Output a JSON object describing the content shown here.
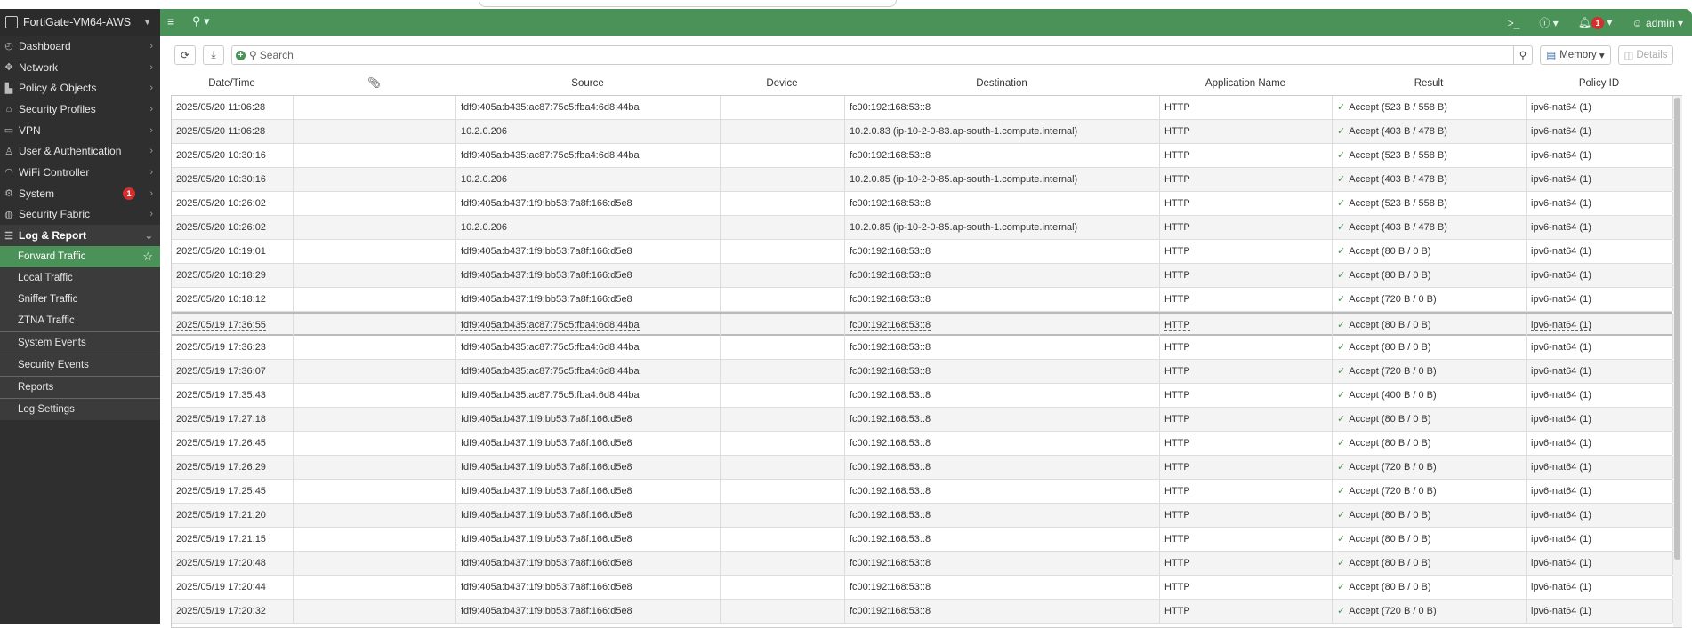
{
  "device_name": "FortiGate-VM64-AWS",
  "sidebar": {
    "items": [
      {
        "label": "Dashboard",
        "icon": "dashboard-icon"
      },
      {
        "label": "Network",
        "icon": "network-icon"
      },
      {
        "label": "Policy & Objects",
        "icon": "policy-icon"
      },
      {
        "label": "Security Profiles",
        "icon": "lock-icon"
      },
      {
        "label": "VPN",
        "icon": "vpn-icon"
      },
      {
        "label": "User & Authentication",
        "icon": "user-icon"
      },
      {
        "label": "WiFi Controller",
        "icon": "wifi-icon"
      },
      {
        "label": "System",
        "icon": "gear-icon",
        "badge": "1"
      },
      {
        "label": "Security Fabric",
        "icon": "fabric-icon"
      }
    ],
    "log_report": {
      "label": "Log & Report",
      "sub": [
        "Forward Traffic",
        "Local Traffic",
        "Sniffer Traffic",
        "ZTNA Traffic"
      ],
      "sections": [
        "System Events",
        "Security Events",
        "Reports",
        "Log Settings"
      ]
    }
  },
  "topbar": {
    "notification_count": "1",
    "user": "admin"
  },
  "toolbar": {
    "search_placeholder": "Search",
    "memory_label": "Memory",
    "details_label": "Details"
  },
  "columns": [
    "Date/Time",
    "",
    "Source",
    "Device",
    "Destination",
    "Application Name",
    "Result",
    "Policy ID"
  ],
  "rows": [
    [
      "2025/05/20 11:06:28",
      "fdf9:405a:b435:ac87:75c5:fba4:6d8:44ba",
      "fc00:192:168:53::8",
      "HTTP",
      "Accept (523 B / 558 B)",
      "ipv6-nat64 (1)"
    ],
    [
      "2025/05/20 11:06:28",
      "10.2.0.206",
      "10.2.0.83 (ip-10-2-0-83.ap-south-1.compute.internal)",
      "HTTP",
      "Accept (403 B / 478 B)",
      "ipv6-nat64 (1)"
    ],
    [
      "2025/05/20 10:30:16",
      "fdf9:405a:b435:ac87:75c5:fba4:6d8:44ba",
      "fc00:192:168:53::8",
      "HTTP",
      "Accept (523 B / 558 B)",
      "ipv6-nat64 (1)"
    ],
    [
      "2025/05/20 10:30:16",
      "10.2.0.206",
      "10.2.0.85 (ip-10-2-0-85.ap-south-1.compute.internal)",
      "HTTP",
      "Accept (403 B / 478 B)",
      "ipv6-nat64 (1)"
    ],
    [
      "2025/05/20 10:26:02",
      "fdf9:405a:b437:1f9:bb53:7a8f:166:d5e8",
      "fc00:192:168:53::8",
      "HTTP",
      "Accept (523 B / 558 B)",
      "ipv6-nat64 (1)"
    ],
    [
      "2025/05/20 10:26:02",
      "10.2.0.206",
      "10.2.0.85 (ip-10-2-0-85.ap-south-1.compute.internal)",
      "HTTP",
      "Accept (403 B / 478 B)",
      "ipv6-nat64 (1)"
    ],
    [
      "2025/05/20 10:19:01",
      "fdf9:405a:b437:1f9:bb53:7a8f:166:d5e8",
      "fc00:192:168:53::8",
      "HTTP",
      "Accept (80 B / 0 B)",
      "ipv6-nat64 (1)"
    ],
    [
      "2025/05/20 10:18:29",
      "fdf9:405a:b437:1f9:bb53:7a8f:166:d5e8",
      "fc00:192:168:53::8",
      "HTTP",
      "Accept (80 B / 0 B)",
      "ipv6-nat64 (1)"
    ],
    [
      "2025/05/20 10:18:12",
      "fdf9:405a:b437:1f9:bb53:7a8f:166:d5e8",
      "fc00:192:168:53::8",
      "HTTP",
      "Accept (720 B / 0 B)",
      "ipv6-nat64 (1)"
    ],
    [
      "2025/05/19 17:36:55",
      "fdf9:405a:b435:ac87:75c5:fba4:6d8:44ba",
      "fc00:192:168:53::8",
      "HTTP",
      "Accept (80 B / 0 B)",
      "ipv6-nat64 (1)"
    ],
    [
      "2025/05/19 17:36:23",
      "fdf9:405a:b435:ac87:75c5:fba4:6d8:44ba",
      "fc00:192:168:53::8",
      "HTTP",
      "Accept (80 B / 0 B)",
      "ipv6-nat64 (1)"
    ],
    [
      "2025/05/19 17:36:07",
      "fdf9:405a:b435:ac87:75c5:fba4:6d8:44ba",
      "fc00:192:168:53::8",
      "HTTP",
      "Accept (720 B / 0 B)",
      "ipv6-nat64 (1)"
    ],
    [
      "2025/05/19 17:35:43",
      "fdf9:405a:b435:ac87:75c5:fba4:6d8:44ba",
      "fc00:192:168:53::8",
      "HTTP",
      "Accept (400 B / 0 B)",
      "ipv6-nat64 (1)"
    ],
    [
      "2025/05/19 17:27:18",
      "fdf9:405a:b437:1f9:bb53:7a8f:166:d5e8",
      "fc00:192:168:53::8",
      "HTTP",
      "Accept (80 B / 0 B)",
      "ipv6-nat64 (1)"
    ],
    [
      "2025/05/19 17:26:45",
      "fdf9:405a:b437:1f9:bb53:7a8f:166:d5e8",
      "fc00:192:168:53::8",
      "HTTP",
      "Accept (80 B / 0 B)",
      "ipv6-nat64 (1)"
    ],
    [
      "2025/05/19 17:26:29",
      "fdf9:405a:b437:1f9:bb53:7a8f:166:d5e8",
      "fc00:192:168:53::8",
      "HTTP",
      "Accept (720 B / 0 B)",
      "ipv6-nat64 (1)"
    ],
    [
      "2025/05/19 17:25:45",
      "fdf9:405a:b437:1f9:bb53:7a8f:166:d5e8",
      "fc00:192:168:53::8",
      "HTTP",
      "Accept (720 B / 0 B)",
      "ipv6-nat64 (1)"
    ],
    [
      "2025/05/19 17:21:20",
      "fdf9:405a:b437:1f9:bb53:7a8f:166:d5e8",
      "fc00:192:168:53::8",
      "HTTP",
      "Accept (80 B / 0 B)",
      "ipv6-nat64 (1)"
    ],
    [
      "2025/05/19 17:21:15",
      "fdf9:405a:b437:1f9:bb53:7a8f:166:d5e8",
      "fc00:192:168:53::8",
      "HTTP",
      "Accept (80 B / 0 B)",
      "ipv6-nat64 (1)"
    ],
    [
      "2025/05/19 17:20:48",
      "fdf9:405a:b437:1f9:bb53:7a8f:166:d5e8",
      "fc00:192:168:53::8",
      "HTTP",
      "Accept (80 B / 0 B)",
      "ipv6-nat64 (1)"
    ],
    [
      "2025/05/19 17:20:44",
      "fdf9:405a:b437:1f9:bb53:7a8f:166:d5e8",
      "fc00:192:168:53::8",
      "HTTP",
      "Accept (80 B / 0 B)",
      "ipv6-nat64 (1)"
    ],
    [
      "2025/05/19 17:20:32",
      "fdf9:405a:b437:1f9:bb53:7a8f:166:d5e8",
      "fc00:192:168:53::8",
      "HTTP",
      "Accept (720 B / 0 B)",
      "ipv6-nat64 (1)"
    ]
  ],
  "colors": {
    "brand_green": "#4a9258",
    "sidebar_bg": "#2f2f2f",
    "badge_red": "#d32f2f"
  }
}
